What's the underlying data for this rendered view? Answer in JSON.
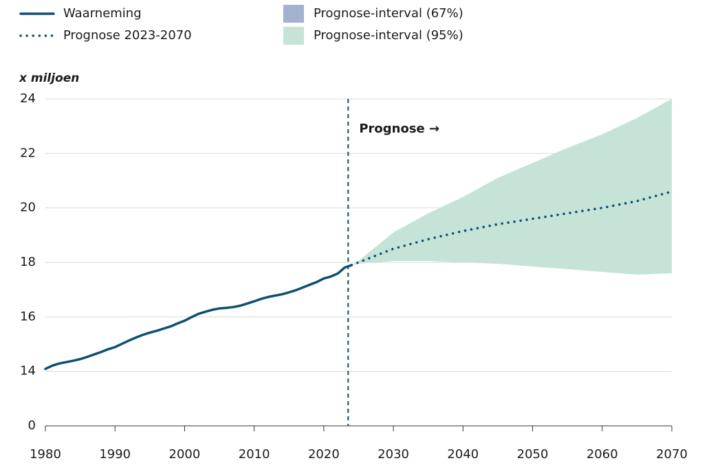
{
  "chart_data": {
    "type": "line",
    "y_unit_label": "x miljoen",
    "xlim": [
      1980,
      2070
    ],
    "xticks": [
      1980,
      1990,
      2000,
      2010,
      2020,
      2030,
      2040,
      2050,
      2060,
      2070
    ],
    "ylim": [
      0,
      24
    ],
    "ybreak": [
      0,
      14
    ],
    "yticks": [
      0,
      14,
      16,
      18,
      20,
      22,
      24
    ],
    "grid": true,
    "legend": "top",
    "annotation": {
      "text": "Prognose →",
      "x": 2023.5
    },
    "series": [
      {
        "name": "Waarneming",
        "color": "#0b4f71",
        "style": "solid",
        "x": [
          1980,
          1981,
          1982,
          1983,
          1984,
          1985,
          1986,
          1987,
          1988,
          1989,
          1990,
          1991,
          1992,
          1993,
          1994,
          1995,
          1996,
          1997,
          1998,
          1999,
          2000,
          2001,
          2002,
          2003,
          2004,
          2005,
          2006,
          2007,
          2008,
          2009,
          2010,
          2011,
          2012,
          2013,
          2014,
          2015,
          2016,
          2017,
          2018,
          2019,
          2020,
          2021,
          2022,
          2023,
          2024
        ],
        "values": [
          14.09,
          14.21,
          14.29,
          14.34,
          14.39,
          14.45,
          14.53,
          14.62,
          14.71,
          14.81,
          14.89,
          15.01,
          15.13,
          15.24,
          15.34,
          15.42,
          15.49,
          15.57,
          15.65,
          15.76,
          15.86,
          15.99,
          16.11,
          16.19,
          16.26,
          16.31,
          16.33,
          16.36,
          16.41,
          16.49,
          16.57,
          16.66,
          16.73,
          16.78,
          16.83,
          16.9,
          16.98,
          17.08,
          17.18,
          17.28,
          17.41,
          17.48,
          17.59,
          17.81,
          17.9
        ]
      },
      {
        "name": "Prognose 2023-2070",
        "color": "#0b4f71",
        "style": "dotted",
        "x": [
          2024,
          2025,
          2030,
          2035,
          2040,
          2045,
          2050,
          2055,
          2060,
          2065,
          2070
        ],
        "values": [
          17.9,
          18.0,
          18.5,
          18.85,
          19.15,
          19.4,
          19.6,
          19.8,
          20.0,
          20.25,
          20.6
        ]
      },
      {
        "name": "Prognose-interval (67%)",
        "color": "#a4b1cf",
        "style": "band",
        "x": [
          2024,
          2025,
          2030,
          2035,
          2040,
          2045,
          2050,
          2055,
          2060,
          2065,
          2070
        ],
        "lower": [
          17.9,
          17.97,
          18.2,
          18.45,
          18.6,
          18.68,
          18.7,
          18.72,
          18.75,
          18.8,
          18.9
        ],
        "upper": [
          17.9,
          18.03,
          18.85,
          19.35,
          19.8,
          20.2,
          20.6,
          20.95,
          21.3,
          21.7,
          22.25
        ]
      },
      {
        "name": "Prognose-interval (95%)",
        "color": "#c5e3d7",
        "style": "band",
        "x": [
          2024,
          2025,
          2030,
          2035,
          2040,
          2045,
          2050,
          2055,
          2060,
          2065,
          2070
        ],
        "lower": [
          17.9,
          17.95,
          18.05,
          18.05,
          18.0,
          17.95,
          17.85,
          17.75,
          17.65,
          17.55,
          17.6
        ],
        "upper": [
          17.9,
          18.06,
          19.1,
          19.8,
          20.4,
          21.1,
          21.65,
          22.2,
          22.7,
          23.3,
          24.0
        ]
      }
    ]
  }
}
